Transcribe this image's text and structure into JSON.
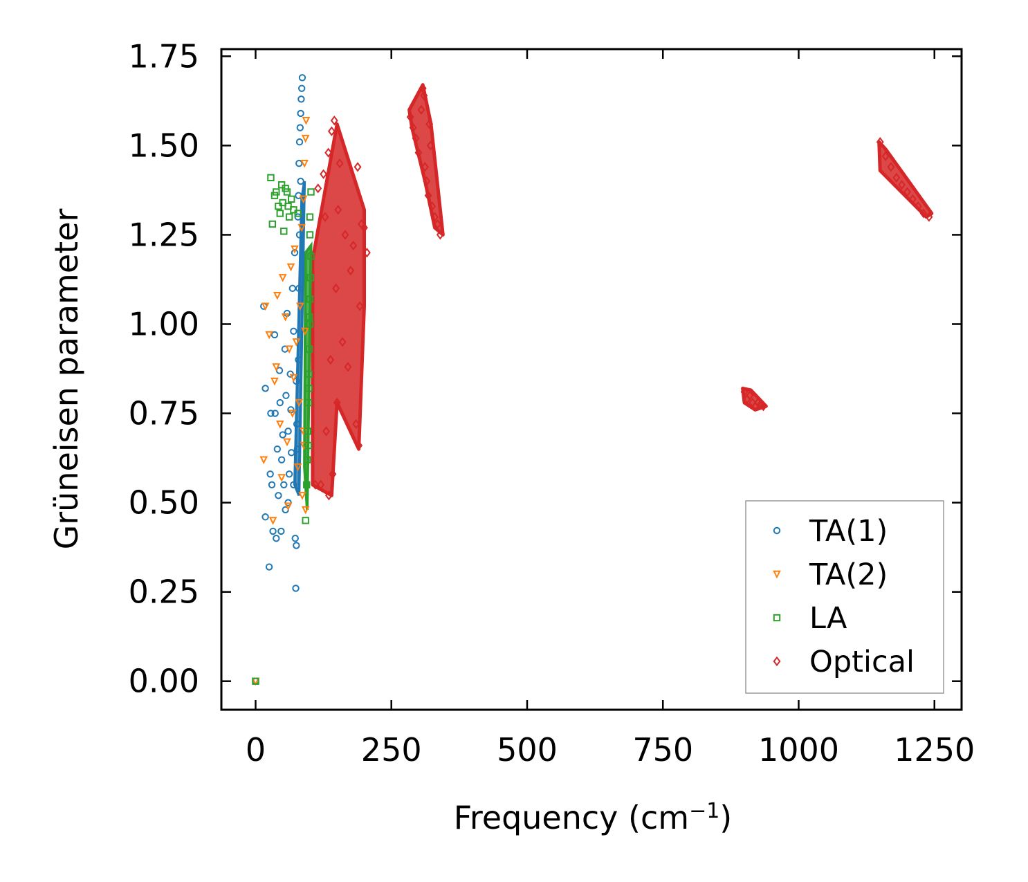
{
  "chart_data": {
    "type": "scatter",
    "title": "",
    "xlabel": "Frequency (cm",
    "xlabel_sup": "−1",
    "xlabel_close": ")",
    "ylabel": "Grüneisen parameter",
    "xlim": [
      -63,
      1300
    ],
    "ylim": [
      -0.08,
      1.77
    ],
    "xticks": [
      "0",
      "250",
      "500",
      "750",
      "1000",
      "1250"
    ],
    "xtick_values": [
      0,
      250,
      500,
      750,
      1000,
      1250
    ],
    "yticks": [
      "0.00",
      "0.25",
      "0.50",
      "0.75",
      "1.00",
      "1.25",
      "1.50",
      "1.75"
    ],
    "ytick_values": [
      0,
      0.25,
      0.5,
      0.75,
      1.0,
      1.25,
      1.5,
      1.75
    ],
    "legend_position": "lower-right",
    "series": [
      {
        "name": "TA(1)",
        "color": "#1f77b4",
        "marker": "circle",
        "points": [
          [
            0,
            0
          ],
          [
            15,
            1.05
          ],
          [
            18,
            0.46
          ],
          [
            18,
            0.82
          ],
          [
            25,
            0.32
          ],
          [
            27,
            0.58
          ],
          [
            28,
            0.75
          ],
          [
            30,
            0.55
          ],
          [
            32,
            0.42
          ],
          [
            35,
            0.97
          ],
          [
            36,
            0.75
          ],
          [
            38,
            0.4
          ],
          [
            40,
            0.65
          ],
          [
            42,
            0.52
          ],
          [
            44,
            0.87
          ],
          [
            45,
            0.78
          ],
          [
            47,
            0.42
          ],
          [
            48,
            0.62
          ],
          [
            50,
            0.69
          ],
          [
            52,
            0.55
          ],
          [
            54,
            0.93
          ],
          [
            55,
            0.48
          ],
          [
            56,
            0.8
          ],
          [
            58,
            1.03
          ],
          [
            60,
            0.7
          ],
          [
            60,
            0.5
          ],
          [
            62,
            0.58
          ],
          [
            64,
            0.86
          ],
          [
            65,
            0.76
          ],
          [
            66,
            0.64
          ],
          [
            68,
            1.1
          ],
          [
            70,
            0.55
          ],
          [
            70,
            0.98
          ],
          [
            72,
            1.2
          ],
          [
            73,
            0.4
          ],
          [
            74,
            0.26
          ],
          [
            75,
            0.38
          ],
          [
            75,
            0.84
          ],
          [
            76,
            0.72
          ],
          [
            78,
            1.3
          ],
          [
            79,
            1.36
          ],
          [
            80,
            1.45
          ],
          [
            81,
            1.51
          ],
          [
            82,
            1.55
          ],
          [
            83,
            1.59
          ],
          [
            84,
            1.63
          ],
          [
            85,
            1.66
          ],
          [
            86,
            1.69
          ],
          [
            80,
            1.1
          ],
          [
            79,
            0.9
          ],
          [
            81,
            1.25
          ],
          [
            77,
            0.65
          ],
          [
            83,
            1.4
          ]
        ]
      },
      {
        "name": "TA(2)",
        "color": "#ff7f0e",
        "marker": "triangle-down",
        "points": [
          [
            0,
            0
          ],
          [
            15,
            0.62
          ],
          [
            18,
            1.05
          ],
          [
            25,
            0.97
          ],
          [
            32,
            0.45
          ],
          [
            35,
            0.84
          ],
          [
            38,
            0.88
          ],
          [
            40,
            1.08
          ],
          [
            45,
            0.72
          ],
          [
            48,
            0.57
          ],
          [
            50,
            1.13
          ],
          [
            55,
            1.02
          ],
          [
            58,
            0.67
          ],
          [
            60,
            0.49
          ],
          [
            62,
            0.93
          ],
          [
            65,
            1.16
          ],
          [
            68,
            0.75
          ],
          [
            70,
            0.85
          ],
          [
            72,
            1.21
          ],
          [
            75,
            0.95
          ],
          [
            78,
            0.6
          ],
          [
            80,
            0.78
          ],
          [
            82,
            1.05
          ],
          [
            85,
            1.27
          ],
          [
            86,
            0.52
          ],
          [
            88,
            1.35
          ],
          [
            89,
            0.66
          ],
          [
            90,
            1.45
          ],
          [
            91,
            0.98
          ],
          [
            92,
            1.52
          ],
          [
            93,
            1.57
          ],
          [
            88,
            0.7
          ],
          [
            92,
            0.48
          ]
        ]
      },
      {
        "name": "LA",
        "color": "#2ca02c",
        "marker": "square",
        "points": [
          [
            0,
            0
          ],
          [
            28,
            1.41
          ],
          [
            31,
            1.28
          ],
          [
            35,
            1.36
          ],
          [
            38,
            1.37
          ],
          [
            42,
            1.33
          ],
          [
            45,
            1.31
          ],
          [
            48,
            1.39
          ],
          [
            50,
            1.34
          ],
          [
            52,
            1.26
          ],
          [
            55,
            1.38
          ],
          [
            58,
            1.37
          ],
          [
            60,
            1.33
          ],
          [
            62,
            1.3
          ],
          [
            66,
            1.35
          ],
          [
            70,
            1.32
          ],
          [
            78,
            1.31
          ],
          [
            92,
            0.45
          ],
          [
            94,
            0.55
          ],
          [
            95,
            0.62
          ],
          [
            96,
            0.7
          ],
          [
            97,
            0.78
          ],
          [
            98,
            0.86
          ],
          [
            99,
            0.93
          ],
          [
            100,
            1.0
          ],
          [
            100,
            1.07
          ],
          [
            101,
            1.13
          ],
          [
            102,
            1.19
          ],
          [
            100,
            1.25
          ],
          [
            100,
            1.3
          ],
          [
            102,
            1.37
          ],
          [
            98,
            0.82
          ],
          [
            97,
            0.66
          ],
          [
            99,
            1.02
          ]
        ]
      },
      {
        "name": "Optical",
        "color": "#d62728",
        "marker": "diamond",
        "points": [
          [
            110,
            0.55
          ],
          [
            115,
            1.38
          ],
          [
            120,
            0.55
          ],
          [
            125,
            1.42
          ],
          [
            128,
            1.3
          ],
          [
            130,
            0.7
          ],
          [
            134,
            1.48
          ],
          [
            135,
            0.52
          ],
          [
            138,
            0.9
          ],
          [
            140,
            1.54
          ],
          [
            142,
            0.58
          ],
          [
            145,
            1.57
          ],
          [
            148,
            1.1
          ],
          [
            150,
            0.78
          ],
          [
            152,
            1.32
          ],
          [
            155,
            1.45
          ],
          [
            160,
            0.95
          ],
          [
            165,
            1.25
          ],
          [
            170,
            0.88
          ],
          [
            175,
            1.15
          ],
          [
            180,
            1.22
          ],
          [
            185,
            0.72
          ],
          [
            188,
            1.44
          ],
          [
            190,
            0.66
          ],
          [
            192,
            1.05
          ],
          [
            195,
            1.28
          ],
          [
            200,
            1.27
          ],
          [
            205,
            1.2
          ],
          [
            285,
            1.58
          ],
          [
            290,
            1.55
          ],
          [
            295,
            1.52
          ],
          [
            300,
            1.48
          ],
          [
            305,
            1.6
          ],
          [
            308,
            1.66
          ],
          [
            310,
            1.64
          ],
          [
            312,
            1.44
          ],
          [
            315,
            1.4
          ],
          [
            318,
            1.36
          ],
          [
            320,
            1.56
          ],
          [
            322,
            1.5
          ],
          [
            325,
            1.33
          ],
          [
            330,
            1.3
          ],
          [
            335,
            1.28
          ],
          [
            340,
            1.25
          ],
          [
            900,
            0.81
          ],
          [
            905,
            0.79
          ],
          [
            910,
            0.8
          ],
          [
            915,
            0.78
          ],
          [
            920,
            0.77
          ],
          [
            925,
            0.78
          ],
          [
            930,
            0.775
          ],
          [
            935,
            0.77
          ],
          [
            1150,
            1.51
          ],
          [
            1160,
            1.47
          ],
          [
            1170,
            1.44
          ],
          [
            1180,
            1.41
          ],
          [
            1190,
            1.39
          ],
          [
            1200,
            1.37
          ],
          [
            1210,
            1.35
          ],
          [
            1220,
            1.33
          ],
          [
            1230,
            1.31
          ],
          [
            1240,
            1.3
          ]
        ]
      }
    ]
  }
}
